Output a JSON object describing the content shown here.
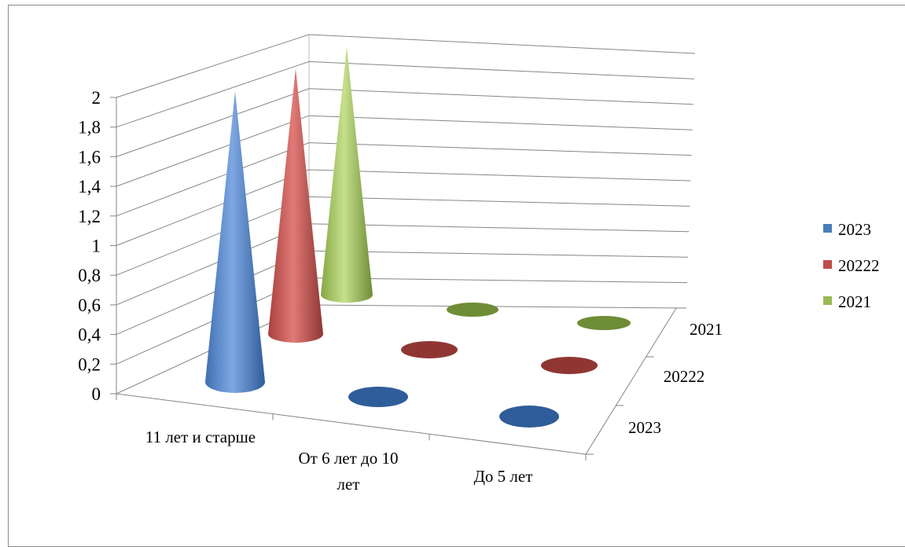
{
  "chart_data": {
    "type": "bar",
    "subtype": "3d-cone",
    "title": "",
    "categories": [
      "11 лет и старше",
      "От 6 лет до 10 лет",
      "До 5 лет"
    ],
    "category_label_lines": [
      [
        "11 лет и старше"
      ],
      [
        "От 6 лет до 10",
        "лет"
      ],
      [
        "До 5 лет"
      ]
    ],
    "depth_categories": [
      "2023",
      "20222",
      "2021"
    ],
    "series": [
      {
        "name": "2023",
        "values": [
          2,
          0,
          0
        ],
        "color": "#4a7ebb"
      },
      {
        "name": "20222",
        "values": [
          2,
          0,
          0
        ],
        "color": "#be4b48"
      },
      {
        "name": "2021",
        "values": [
          2,
          0,
          0
        ],
        "color": "#98b954"
      }
    ],
    "y_ticks": [
      "0",
      "0,2",
      "0,4",
      "0,6",
      "0,8",
      "1",
      "1,2",
      "1,4",
      "1,6",
      "1,8",
      "2"
    ],
    "ylim": [
      0,
      2
    ],
    "grid": true,
    "legend_position": "right"
  }
}
